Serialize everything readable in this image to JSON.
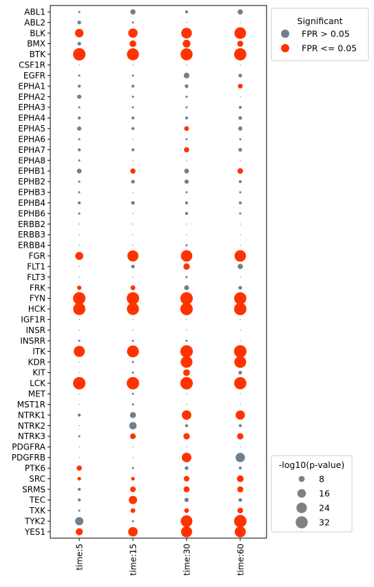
{
  "chart_data": {
    "type": "scatter",
    "title": "",
    "xlabel": "",
    "ylabel": "",
    "categories_x": [
      "time:5",
      "time:15",
      "time:30",
      "time:60"
    ],
    "categories_y": [
      "ABL1",
      "ABL2",
      "BLK",
      "BMX",
      "BTK",
      "CSF1R",
      "EGFR",
      "EPHA1",
      "EPHA2",
      "EPHA3",
      "EPHA4",
      "EPHA5",
      "EPHA6",
      "EPHA7",
      "EPHA8",
      "EPHB1",
      "EPHB2",
      "EPHB3",
      "EPHB4",
      "EPHB6",
      "ERBB2",
      "ERBB3",
      "ERBB4",
      "FGR",
      "FLT1",
      "FLT3",
      "FRK",
      "FYN",
      "HCK",
      "IGF1R",
      "INSR",
      "INSRR",
      "ITK",
      "KDR",
      "KIT",
      "LCK",
      "MET",
      "MST1R",
      "NTRK1",
      "NTRK2",
      "NTRK3",
      "PDGFRA",
      "PDGFRB",
      "PTK6",
      "SRC",
      "SRMS",
      "TEC",
      "TXK",
      "TYK2",
      "YES1"
    ],
    "colors": {
      "not_significant": "#708090",
      "significant": "#ff3300"
    },
    "color_legend": {
      "title": "Significant",
      "entries": [
        {
          "label": "FPR > 0.05",
          "key": "not_significant"
        },
        {
          "label": "FPR <= 0.05",
          "key": "significant"
        }
      ],
      "placement": "top-right outside"
    },
    "size_legend": {
      "title": "-log10(p-value)",
      "values": [
        8,
        16,
        24,
        32
      ],
      "placement": "bottom-right outside"
    },
    "points_note": "each row: [kinase, time5, time15, time30, time60]; each cell: [-log10 p-value, significant 0/1]",
    "points": [
      [
        "ABL1",
        [
          1,
          0
        ],
        [
          6,
          0
        ],
        [
          2,
          0
        ],
        [
          6,
          0
        ]
      ],
      [
        "ABL2",
        [
          3,
          0
        ],
        [
          1,
          0
        ],
        [
          0.2,
          0
        ],
        [
          0.2,
          0
        ]
      ],
      [
        "BLK",
        [
          16,
          1
        ],
        [
          19,
          1
        ],
        [
          25,
          1
        ],
        [
          30,
          1
        ]
      ],
      [
        "BMX",
        [
          3,
          0
        ],
        [
          10,
          1
        ],
        [
          13,
          1
        ],
        [
          8,
          1
        ]
      ],
      [
        "BTK",
        [
          34,
          1
        ],
        [
          32,
          1
        ],
        [
          32,
          1
        ],
        [
          33,
          1
        ]
      ],
      [
        "CSF1R",
        [
          0.2,
          0
        ],
        [
          0.2,
          0
        ],
        [
          0.2,
          0
        ],
        [
          0.2,
          0
        ]
      ],
      [
        "EGFR",
        [
          1,
          0
        ],
        [
          1,
          0
        ],
        [
          7,
          0
        ],
        [
          3,
          0
        ]
      ],
      [
        "EPHA1",
        [
          2,
          0
        ],
        [
          2,
          0
        ],
        [
          3,
          0
        ],
        [
          5,
          1
        ]
      ],
      [
        "EPHA2",
        [
          4,
          0
        ],
        [
          1,
          0
        ],
        [
          1,
          0
        ],
        [
          0.2,
          0
        ]
      ],
      [
        "EPHA3",
        [
          1,
          0
        ],
        [
          1,
          0
        ],
        [
          1,
          0
        ],
        [
          2,
          0
        ]
      ],
      [
        "EPHA4",
        [
          2,
          0
        ],
        [
          2,
          0
        ],
        [
          2,
          0
        ],
        [
          3,
          0
        ]
      ],
      [
        "EPHA5",
        [
          4,
          0
        ],
        [
          2,
          0
        ],
        [
          5,
          1
        ],
        [
          4,
          0
        ]
      ],
      [
        "EPHA6",
        [
          1,
          0
        ],
        [
          0.2,
          0
        ],
        [
          1,
          0
        ],
        [
          1,
          0
        ]
      ],
      [
        "EPHA7",
        [
          2,
          0
        ],
        [
          2,
          0
        ],
        [
          6,
          1
        ],
        [
          3,
          0
        ]
      ],
      [
        "EPHA8",
        [
          1,
          0
        ],
        [
          0.2,
          0
        ],
        [
          0.2,
          0
        ],
        [
          0.2,
          0
        ]
      ],
      [
        "EPHB1",
        [
          5,
          0
        ],
        [
          6,
          1
        ],
        [
          5,
          0
        ],
        [
          7,
          1
        ]
      ],
      [
        "EPHB2",
        [
          1,
          0
        ],
        [
          3,
          0
        ],
        [
          4,
          0
        ],
        [
          2,
          0
        ]
      ],
      [
        "EPHB3",
        [
          1,
          0
        ],
        [
          0.2,
          0
        ],
        [
          1,
          0
        ],
        [
          1,
          0
        ]
      ],
      [
        "EPHB4",
        [
          2,
          0
        ],
        [
          3,
          0
        ],
        [
          2,
          0
        ],
        [
          2,
          0
        ]
      ],
      [
        "EPHB6",
        [
          1,
          0
        ],
        [
          0.2,
          0
        ],
        [
          2,
          0
        ],
        [
          1,
          0
        ]
      ],
      [
        "ERBB2",
        [
          0.2,
          0
        ],
        [
          0.2,
          0
        ],
        [
          0.2,
          0
        ],
        [
          0.2,
          0
        ]
      ],
      [
        "ERBB3",
        [
          0.2,
          0
        ],
        [
          0.2,
          0
        ],
        [
          0.2,
          0
        ],
        [
          0.2,
          0
        ]
      ],
      [
        "ERBB4",
        [
          0.2,
          0
        ],
        [
          0.2,
          0
        ],
        [
          1,
          0
        ],
        [
          0.2,
          0
        ]
      ],
      [
        "FGR",
        [
          14,
          1
        ],
        [
          27,
          1
        ],
        [
          29,
          1
        ],
        [
          29,
          1
        ]
      ],
      [
        "FLT1",
        [
          0.2,
          0
        ],
        [
          3,
          0
        ],
        [
          9,
          1
        ],
        [
          6,
          0
        ]
      ],
      [
        "FLT3",
        [
          0.2,
          0
        ],
        [
          0.2,
          0
        ],
        [
          1,
          0
        ],
        [
          0.2,
          0
        ]
      ],
      [
        "FRK",
        [
          4,
          1
        ],
        [
          5,
          1
        ],
        [
          5,
          0
        ],
        [
          3,
          0
        ]
      ],
      [
        "FYN",
        [
          34,
          1
        ],
        [
          34,
          1
        ],
        [
          34,
          1
        ],
        [
          33,
          1
        ]
      ],
      [
        "HCK",
        [
          33,
          1
        ],
        [
          32,
          1
        ],
        [
          34,
          1
        ],
        [
          34,
          1
        ]
      ],
      [
        "IGF1R",
        [
          0.2,
          0
        ],
        [
          0.2,
          0
        ],
        [
          0.2,
          0
        ],
        [
          0.2,
          0
        ]
      ],
      [
        "INSR",
        [
          0.2,
          0
        ],
        [
          0.2,
          0
        ],
        [
          0.2,
          0
        ],
        [
          0.2,
          0
        ]
      ],
      [
        "INSRR",
        [
          1,
          0
        ],
        [
          1,
          0
        ],
        [
          1,
          0
        ],
        [
          0.2,
          0
        ]
      ],
      [
        "ITK",
        [
          27,
          1
        ],
        [
          31,
          1
        ],
        [
          34,
          1
        ],
        [
          34,
          1
        ]
      ],
      [
        "KDR",
        [
          0.2,
          0
        ],
        [
          1,
          0
        ],
        [
          30,
          1
        ],
        [
          31,
          1
        ]
      ],
      [
        "KIT",
        [
          0.2,
          0
        ],
        [
          1,
          0
        ],
        [
          10,
          1
        ],
        [
          3,
          0
        ]
      ],
      [
        "LCK",
        [
          34,
          1
        ],
        [
          34,
          1
        ],
        [
          34,
          1
        ],
        [
          33,
          1
        ]
      ],
      [
        "MET",
        [
          0.2,
          0
        ],
        [
          1,
          0
        ],
        [
          0.2,
          0
        ],
        [
          0.2,
          0
        ]
      ],
      [
        "MST1R",
        [
          0.2,
          0
        ],
        [
          1,
          0
        ],
        [
          0.2,
          0
        ],
        [
          0.2,
          0
        ]
      ],
      [
        "NTRK1",
        [
          2,
          0
        ],
        [
          8,
          0
        ],
        [
          20,
          1
        ],
        [
          19,
          1
        ]
      ],
      [
        "NTRK2",
        [
          0.2,
          0
        ],
        [
          12,
          0
        ],
        [
          2,
          0
        ],
        [
          2,
          0
        ]
      ],
      [
        "NTRK3",
        [
          1,
          0
        ],
        [
          7,
          1
        ],
        [
          9,
          1
        ],
        [
          9,
          1
        ]
      ],
      [
        "PDGFRA",
        [
          0.2,
          0
        ],
        [
          0.2,
          0
        ],
        [
          0.2,
          0
        ],
        [
          0.2,
          0
        ]
      ],
      [
        "PDGFRB",
        [
          0.2,
          0
        ],
        [
          0.2,
          0
        ],
        [
          20,
          1
        ],
        [
          19,
          0
        ]
      ],
      [
        "PTK6",
        [
          6,
          1
        ],
        [
          1,
          0
        ],
        [
          3,
          0
        ],
        [
          2,
          0
        ]
      ],
      [
        "SRC",
        [
          3,
          1
        ],
        [
          3,
          1
        ],
        [
          7,
          1
        ],
        [
          10,
          1
        ]
      ],
      [
        "SRMS",
        [
          2,
          0
        ],
        [
          7,
          1
        ],
        [
          8,
          1
        ],
        [
          8,
          1
        ]
      ],
      [
        "TEC",
        [
          2,
          0
        ],
        [
          15,
          1
        ],
        [
          4,
          0
        ],
        [
          3,
          0
        ]
      ],
      [
        "TXK",
        [
          1,
          0
        ],
        [
          5,
          1
        ],
        [
          5,
          1
        ],
        [
          7,
          1
        ]
      ],
      [
        "TYK2",
        [
          15,
          0
        ],
        [
          1,
          0
        ],
        [
          30,
          1
        ],
        [
          34,
          1
        ]
      ],
      [
        "YES1",
        [
          11,
          1
        ],
        [
          20,
          1
        ],
        [
          27,
          1
        ],
        [
          27,
          1
        ]
      ]
    ]
  }
}
